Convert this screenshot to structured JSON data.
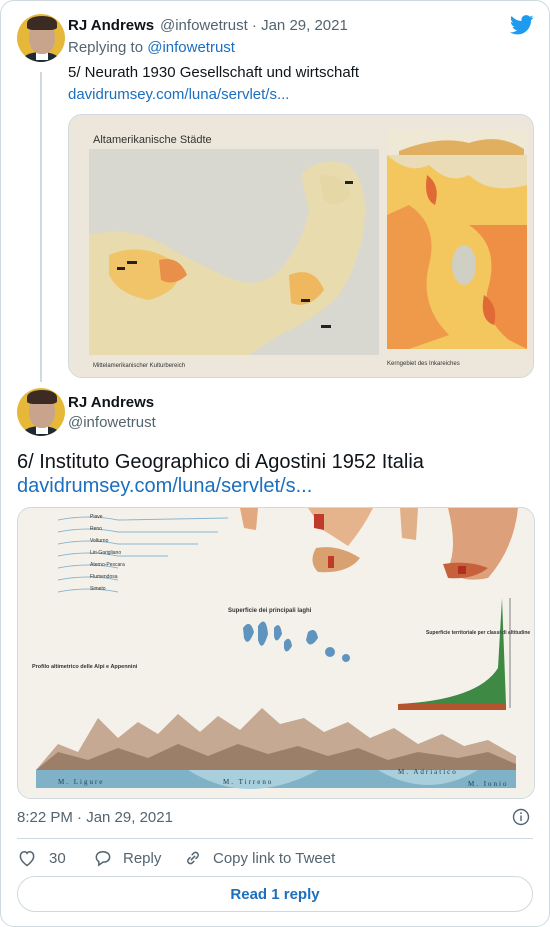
{
  "tweet1": {
    "author_name": "RJ Andrews",
    "handle_date": "@infowetrust · Jan 29, 2021",
    "replying_prefix": "Replying to ",
    "replying_handle": "@infowetrust",
    "text": "5/ Neurath 1930 Gesellschaft und wirtschaft",
    "link": "davidrumsey.com/luna/servlet/s...",
    "map": {
      "title": "Altamerikanische Städte",
      "caption_left": "Mittelamerikanischer Kulturbereich",
      "caption_right": "Kerngebiet des Inkareiches"
    }
  },
  "tweet2": {
    "author_name": "RJ Andrews",
    "handle": "@infowetrust",
    "text": "6/ Instituto Geographico di Agostini 1952 Italia",
    "link": "davidrumsey.com/luna/servlet/s...",
    "map": {
      "profile_title": "Profilo altimetrico delle Alpi e Appennini",
      "lakes_title": "Superficie dei principali laghi",
      "territory_title": "Superficie territoriale per classi di altitudine",
      "rivers": [
        "Piave",
        "Reno",
        "Volturno",
        "Liri-Garigliano",
        "Aterno-Pescara",
        "Flumendosa",
        "Simeto"
      ],
      "seas": [
        "M. Ligure",
        "M. Tirreno",
        "M. Adriatico",
        "M. Ionio"
      ]
    },
    "timestamp": "8:22 PM · Jan 29, 2021",
    "like_count": "30",
    "reply_label": "Reply",
    "copy_label": "Copy link to Tweet",
    "read_reply_label": "Read 1 reply"
  },
  "colors": {
    "twitter_blue": "#1d9bf0",
    "link": "#1b6fc0",
    "muted": "#536471",
    "border": "#cfd9de"
  },
  "icons": [
    "twitter-bird-icon",
    "heart-icon",
    "reply-icon",
    "link-icon",
    "info-icon"
  ]
}
